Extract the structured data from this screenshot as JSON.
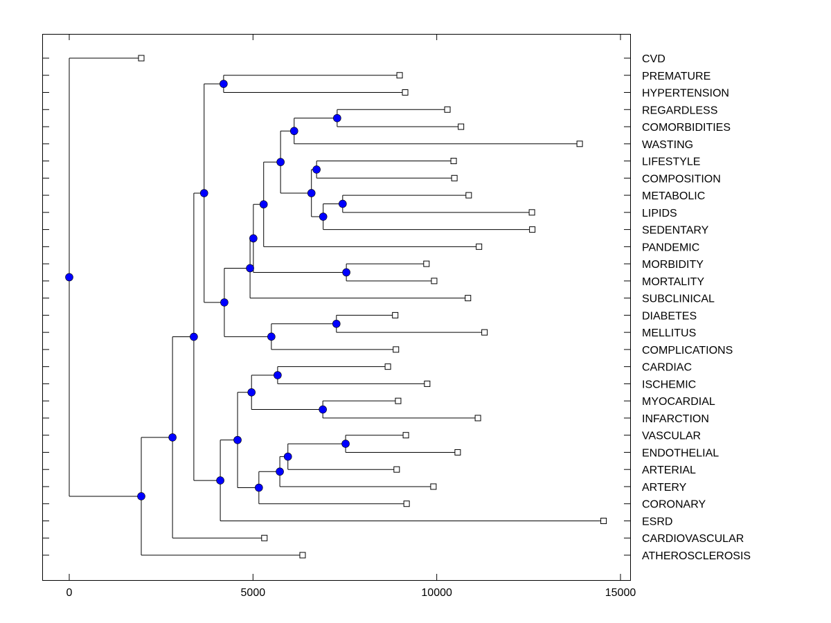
{
  "chart_data": {
    "type": "dendrogram",
    "title": "",
    "xlabel": "",
    "ylabel": "",
    "xlim": [
      -700,
      15300
    ],
    "xticks": [
      0,
      5000,
      10000,
      15000
    ],
    "xtick_labels": [
      "0",
      "5000",
      "10000",
      "15000"
    ],
    "grid": false,
    "orientation": "left-to-right",
    "colors": {
      "node": "#0000ff",
      "line": "#000000",
      "leaf": "#ffffff"
    },
    "leaves": [
      {
        "label": "CVD",
        "value": 1960
      },
      {
        "label": "PREMATURE",
        "value": 8990
      },
      {
        "label": "HYPERTENSION",
        "value": 9140
      },
      {
        "label": "REGARDLESS",
        "value": 10290
      },
      {
        "label": "COMORBIDITIES",
        "value": 10660
      },
      {
        "label": "WASTING",
        "value": 13890
      },
      {
        "label": "LIFESTYLE",
        "value": 10460
      },
      {
        "label": "COMPOSITION",
        "value": 10480
      },
      {
        "label": "METABOLIC",
        "value": 10870
      },
      {
        "label": "LIPIDS",
        "value": 12590
      },
      {
        "label": "SEDENTARY",
        "value": 12600
      },
      {
        "label": "PANDEMIC",
        "value": 11150
      },
      {
        "label": "MORBIDITY",
        "value": 9720
      },
      {
        "label": "MORTALITY",
        "value": 9930
      },
      {
        "label": "SUBCLINICAL",
        "value": 10850
      },
      {
        "label": "DIABETES",
        "value": 8870
      },
      {
        "label": "MELLITUS",
        "value": 11300
      },
      {
        "label": "COMPLICATIONS",
        "value": 8890
      },
      {
        "label": "CARDIAC",
        "value": 8670
      },
      {
        "label": "ISCHEMIC",
        "value": 9740
      },
      {
        "label": "MYOCARDIAL",
        "value": 8950
      },
      {
        "label": "INFARCTION",
        "value": 11120
      },
      {
        "label": "VASCULAR",
        "value": 9160
      },
      {
        "label": "ENDOTHELIAL",
        "value": 10570
      },
      {
        "label": "ARTERIAL",
        "value": 8910
      },
      {
        "label": "ARTERY",
        "value": 9910
      },
      {
        "label": "CORONARY",
        "value": 9180
      },
      {
        "label": "ESRD",
        "value": 14540
      },
      {
        "label": "CARDIOVASCULAR",
        "value": 5310
      },
      {
        "label": "ATHEROSCLEROSIS",
        "value": 6350
      }
    ],
    "nodes": [
      {
        "id": "n0",
        "value": 0,
        "children": [
          "CVD",
          "n1"
        ]
      },
      {
        "id": "n1",
        "value": 1960,
        "children": [
          "n2",
          "ATHEROSCLEROSIS"
        ]
      },
      {
        "id": "n2",
        "value": 2810,
        "children": [
          "n3",
          "CARDIOVASCULAR"
        ]
      },
      {
        "id": "n3",
        "value": 3390,
        "children": [
          "n4",
          "n20"
        ]
      },
      {
        "id": "n4",
        "value": 3670,
        "children": [
          "n5",
          "n6"
        ]
      },
      {
        "id": "n5",
        "value": 4200,
        "children": [
          "PREMATURE",
          "HYPERTENSION"
        ]
      },
      {
        "id": "n6",
        "value": 4220,
        "children": [
          "n7",
          "n18"
        ]
      },
      {
        "id": "n7",
        "value": 4920,
        "children": [
          "n8",
          "SUBCLINICAL"
        ]
      },
      {
        "id": "n8",
        "value": 5010,
        "children": [
          "n9",
          "n17"
        ]
      },
      {
        "id": "n9",
        "value": 5290,
        "children": [
          "n10",
          "PANDEMIC"
        ]
      },
      {
        "id": "n10",
        "value": 5750,
        "children": [
          "n11",
          "n13"
        ]
      },
      {
        "id": "n11",
        "value": 6120,
        "children": [
          "n12",
          "WASTING"
        ]
      },
      {
        "id": "n12",
        "value": 7290,
        "children": [
          "REGARDLESS",
          "COMORBIDITIES"
        ]
      },
      {
        "id": "n13",
        "value": 6590,
        "children": [
          "n14",
          "n15"
        ]
      },
      {
        "id": "n14",
        "value": 6730,
        "children": [
          "LIFESTYLE",
          "COMPOSITION"
        ]
      },
      {
        "id": "n15",
        "value": 6910,
        "children": [
          "n16",
          "SEDENTARY"
        ]
      },
      {
        "id": "n16",
        "value": 7440,
        "children": [
          "METABOLIC",
          "LIPIDS"
        ]
      },
      {
        "id": "n17",
        "value": 7540,
        "children": [
          "MORBIDITY",
          "MORTALITY"
        ]
      },
      {
        "id": "n18",
        "value": 5500,
        "children": [
          "n19",
          "COMPLICATIONS"
        ]
      },
      {
        "id": "n19",
        "value": 7270,
        "children": [
          "DIABETES",
          "MELLITUS"
        ]
      },
      {
        "id": "n20",
        "value": 4110,
        "children": [
          "n21",
          "ESRD"
        ]
      },
      {
        "id": "n21",
        "value": 4580,
        "children": [
          "n22",
          "n25"
        ]
      },
      {
        "id": "n22",
        "value": 4960,
        "children": [
          "n23",
          "n24"
        ]
      },
      {
        "id": "n23",
        "value": 5670,
        "children": [
          "CARDIAC",
          "ISCHEMIC"
        ]
      },
      {
        "id": "n24",
        "value": 6900,
        "children": [
          "MYOCARDIAL",
          "INFARCTION"
        ]
      },
      {
        "id": "n25",
        "value": 5160,
        "children": [
          "n26",
          "CORONARY"
        ]
      },
      {
        "id": "n26",
        "value": 5730,
        "children": [
          "n27",
          "ARTERY"
        ]
      },
      {
        "id": "n27",
        "value": 5950,
        "children": [
          "n28",
          "ARTERIAL"
        ]
      },
      {
        "id": "n28",
        "value": 7520,
        "children": [
          "VASCULAR",
          "ENDOTHELIAL"
        ]
      }
    ]
  }
}
